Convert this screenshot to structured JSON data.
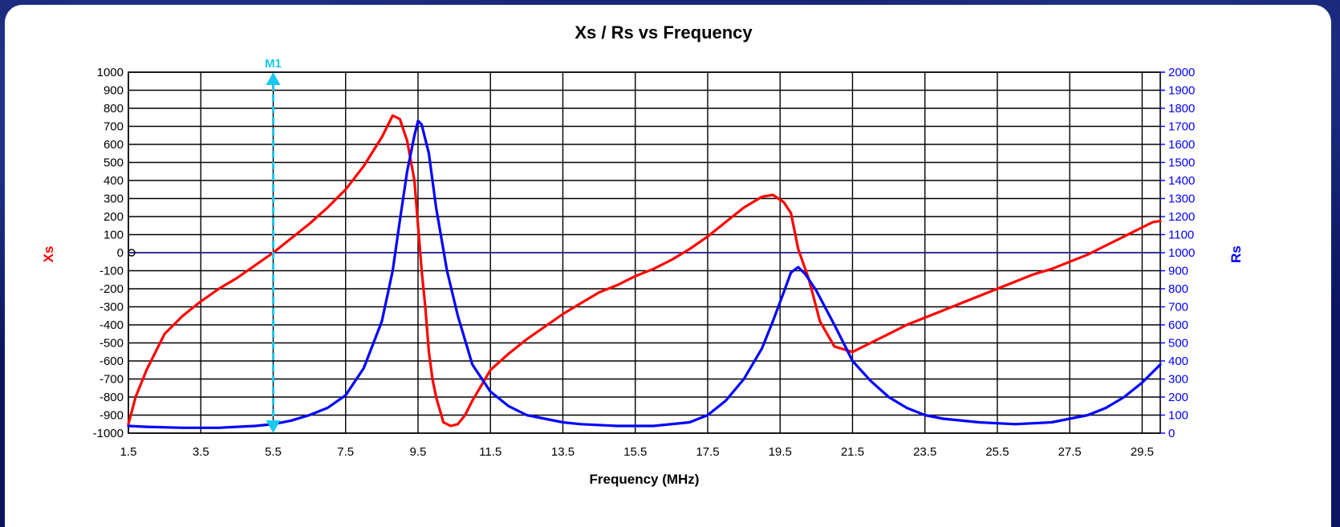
{
  "chart_data": {
    "type": "line",
    "title": "Xs / Rs  vs  Frequency",
    "xlabel": "Frequency (MHz)",
    "ylabel_left": "Xs",
    "ylabel_right": "Rs",
    "xlim": [
      1.5,
      30
    ],
    "ylim_left": [
      -1000,
      1000
    ],
    "ylim_right": [
      0,
      2000
    ],
    "x_ticks": [
      "1.5",
      "3.5",
      "5.5",
      "7.5",
      "9.5",
      "11.5",
      "13.5",
      "15.5",
      "17.5",
      "19.5",
      "21.5",
      "23.5",
      "25.5",
      "27.5",
      "29.5"
    ],
    "y_left_ticks": [
      "1000",
      "900",
      "800",
      "700",
      "600",
      "500",
      "400",
      "300",
      "200",
      "100",
      "0",
      "-100",
      "-200",
      "-300",
      "-400",
      "-500",
      "-600",
      "-700",
      "-800",
      "-900",
      "-1000"
    ],
    "y_right_ticks": [
      "2000",
      "1900",
      "1800",
      "1700",
      "1600",
      "1500",
      "1400",
      "1300",
      "1200",
      "1100",
      "1000",
      "900",
      "800",
      "700",
      "600",
      "500",
      "400",
      "300",
      "200",
      "100",
      "0"
    ],
    "grid": true,
    "colors": {
      "xs": "#ff0000",
      "rs": "#0000ff",
      "marker": "#19c8f0",
      "zero_line": "#1a1aa6"
    },
    "marker": {
      "label": "M1",
      "x": 5.5
    },
    "series": [
      {
        "name": "Xs",
        "axis": "left",
        "x": [
          1.5,
          1.7,
          2.0,
          2.5,
          3.0,
          3.5,
          4.0,
          4.5,
          5.0,
          5.5,
          6.0,
          6.5,
          7.0,
          7.5,
          8.0,
          8.5,
          8.8,
          9.0,
          9.2,
          9.4,
          9.5,
          9.6,
          9.7,
          9.8,
          9.9,
          10.0,
          10.2,
          10.4,
          10.6,
          10.8,
          11.0,
          11.5,
          12.0,
          12.5,
          13.0,
          13.5,
          14.0,
          14.5,
          15.0,
          15.5,
          16.0,
          16.5,
          17.0,
          17.5,
          18.0,
          18.5,
          19.0,
          19.3,
          19.6,
          19.8,
          20.0,
          20.3,
          20.6,
          21.0,
          21.5,
          22.0,
          22.5,
          23.0,
          23.5,
          24.0,
          24.5,
          25.0,
          25.5,
          26.0,
          26.5,
          27.0,
          27.5,
          28.0,
          28.5,
          29.0,
          29.5,
          29.8,
          30.0
        ],
        "y": [
          -950,
          -800,
          -650,
          -450,
          -350,
          -270,
          -200,
          -140,
          -70,
          0,
          80,
          160,
          250,
          350,
          480,
          640,
          760,
          740,
          620,
          400,
          150,
          -100,
          -300,
          -550,
          -700,
          -800,
          -940,
          -960,
          -950,
          -900,
          -820,
          -650,
          -560,
          -480,
          -410,
          -340,
          -280,
          -220,
          -180,
          -130,
          -90,
          -40,
          20,
          90,
          170,
          250,
          310,
          320,
          280,
          220,
          20,
          -150,
          -380,
          -520,
          -550,
          -500,
          -450,
          -400,
          -360,
          -320,
          -280,
          -240,
          -200,
          -160,
          -120,
          -90,
          -50,
          -10,
          40,
          90,
          140,
          170,
          175
        ]
      },
      {
        "name": "Rs",
        "axis": "right",
        "x": [
          1.5,
          2.0,
          3.0,
          4.0,
          4.5,
          5.0,
          5.5,
          6.0,
          6.5,
          7.0,
          7.5,
          8.0,
          8.5,
          8.8,
          9.0,
          9.2,
          9.4,
          9.5,
          9.6,
          9.8,
          10.0,
          10.3,
          10.6,
          11.0,
          11.5,
          12.0,
          12.5,
          13.0,
          13.5,
          14.0,
          15.0,
          16.0,
          17.0,
          17.5,
          18.0,
          18.5,
          19.0,
          19.3,
          19.6,
          19.8,
          20.0,
          20.2,
          20.5,
          21.0,
          21.5,
          22.0,
          22.5,
          23.0,
          23.5,
          24.0,
          25.0,
          26.0,
          27.0,
          28.0,
          28.5,
          29.0,
          29.5,
          30.0
        ],
        "y": [
          40,
          35,
          30,
          30,
          35,
          40,
          50,
          70,
          100,
          140,
          210,
          360,
          620,
          900,
          1180,
          1450,
          1650,
          1730,
          1710,
          1550,
          1250,
          900,
          650,
          380,
          230,
          150,
          100,
          80,
          60,
          50,
          40,
          40,
          60,
          100,
          180,
          300,
          470,
          620,
          780,
          890,
          920,
          880,
          790,
          600,
          400,
          290,
          200,
          140,
          100,
          80,
          60,
          50,
          60,
          100,
          140,
          200,
          280,
          380
        ]
      }
    ]
  }
}
